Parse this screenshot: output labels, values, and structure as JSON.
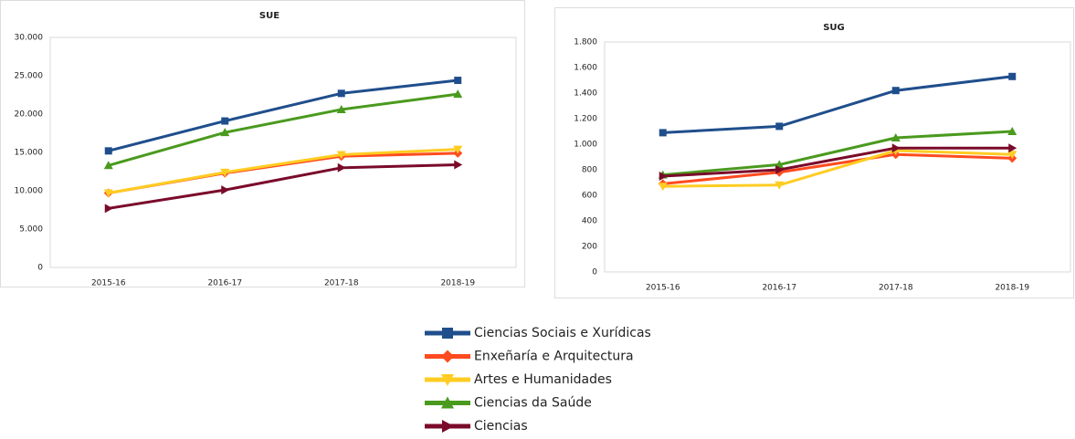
{
  "chart_data": [
    {
      "type": "line",
      "title": "SUE",
      "categories": [
        "2015-16",
        "2016-17",
        "2017-18",
        "2018-19"
      ],
      "ylim": [
        0,
        30000
      ],
      "yticks": [
        0,
        {
          "value": 5000,
          "label": "5.000"
        },
        {
          "value": 10000,
          "label": "10.000"
        },
        {
          "value": 15000,
          "label": "15.000"
        },
        {
          "value": 20000,
          "label": "20.000"
        },
        {
          "value": 25000,
          "label": "25.000"
        },
        {
          "value": 30000,
          "label": "30.000"
        }
      ],
      "series": [
        {
          "name": "Ciencias Sociais e Xurídicas",
          "color": "#1f4e8c",
          "marker": "square",
          "values": [
            15200,
            19100,
            22700,
            24400
          ]
        },
        {
          "name": "Enxeñaría e Arquitectura",
          "color": "#ff4b1f",
          "marker": "diamond",
          "values": [
            9700,
            12300,
            14500,
            14900
          ]
        },
        {
          "name": "Artes e Humanidades",
          "color": "#ffcc22",
          "marker": "triangle-down",
          "values": [
            9700,
            12400,
            14700,
            15400
          ]
        },
        {
          "name": "Ciencias da Saúde",
          "color": "#4a9a1e",
          "marker": "triangle",
          "values": [
            13300,
            17600,
            20600,
            22600
          ]
        },
        {
          "name": "Ciencias",
          "color": "#7a0a2a",
          "marker": "triangle-right",
          "values": [
            7700,
            10100,
            13000,
            13400
          ]
        }
      ]
    },
    {
      "type": "line",
      "title": "SUG",
      "categories": [
        "2015-16",
        "2016-17",
        "2017-18",
        "2018-19"
      ],
      "ylim": [
        0,
        1800
      ],
      "yticks": [
        0,
        200,
        400,
        600,
        800,
        {
          "value": 1000,
          "label": "1.000"
        },
        {
          "value": 1200,
          "label": "1.200"
        },
        {
          "value": 1400,
          "label": "1.400"
        },
        {
          "value": 1600,
          "label": "1.600"
        },
        {
          "value": 1800,
          "label": "1.800"
        }
      ],
      "series": [
        {
          "color": "#1f4e8c",
          "marker": "square",
          "values": [
            1090,
            1140,
            1420,
            1530
          ]
        },
        {
          "color": "#ff4b1f",
          "marker": "diamond",
          "values": [
            690,
            780,
            920,
            890
          ]
        },
        {
          "color": "#ffcc22",
          "marker": "triangle-down",
          "values": [
            670,
            680,
            950,
            920
          ]
        },
        {
          "color": "#4a9a1e",
          "marker": "triangle",
          "values": [
            760,
            840,
            1050,
            1100
          ]
        },
        {
          "color": "#7a0a2a",
          "marker": "triangle-right",
          "values": [
            750,
            800,
            970,
            970
          ]
        }
      ]
    }
  ]
}
